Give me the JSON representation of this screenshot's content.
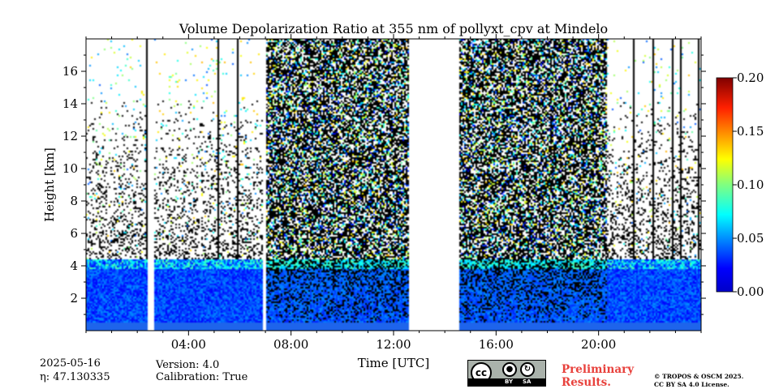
{
  "chart_data": {
    "type": "heatmap",
    "title": "Volume Depolarization Ratio at 355 nm of pollyxt_cpv at Mindelo",
    "xlabel": "Time [UTC]",
    "ylabel": "Height [km]",
    "x_ticks": [
      "04:00",
      "08:00",
      "12:00",
      "16:00",
      "20:00"
    ],
    "x_tick_hours": [
      4,
      8,
      12,
      16,
      20
    ],
    "xlim_hours": [
      0,
      24
    ],
    "y_ticks": [
      "2",
      "4",
      "6",
      "8",
      "10",
      "12",
      "14",
      "16"
    ],
    "y_tick_values": [
      2,
      4,
      6,
      8,
      10,
      12,
      14,
      16
    ],
    "ylim_km": [
      0,
      18
    ],
    "colorbar": {
      "ticks": [
        "0.00",
        "0.05",
        "0.10",
        "0.15",
        "0.20"
      ],
      "tick_values": [
        0.0,
        0.05,
        0.1,
        0.15,
        0.2
      ],
      "range": [
        0.0,
        0.2
      ],
      "colormap": "jet"
    },
    "data_gaps_hours": [
      [
        2.4,
        2.65
      ],
      [
        6.85,
        7.0
      ],
      [
        12.55,
        14.55
      ]
    ],
    "dense_signal_periods_hours": [
      [
        7.0,
        12.55
      ],
      [
        14.55,
        20.3
      ]
    ],
    "boundary_layer_top_km": 4.5
  },
  "footer": {
    "date": "2025-05-16",
    "eta": "η: 47.130335",
    "version": "Version: 4.0",
    "calibration": "Calibration: True",
    "preliminary_line1": "Preliminary",
    "preliminary_line2": "Results.",
    "copyright_line1": "© TROPOS & OSCM 2025.",
    "copyright_line2": "CC BY SA 4.0 License.",
    "license_badge": {
      "cc": "cc",
      "by": "BY",
      "sa": "SA"
    }
  }
}
